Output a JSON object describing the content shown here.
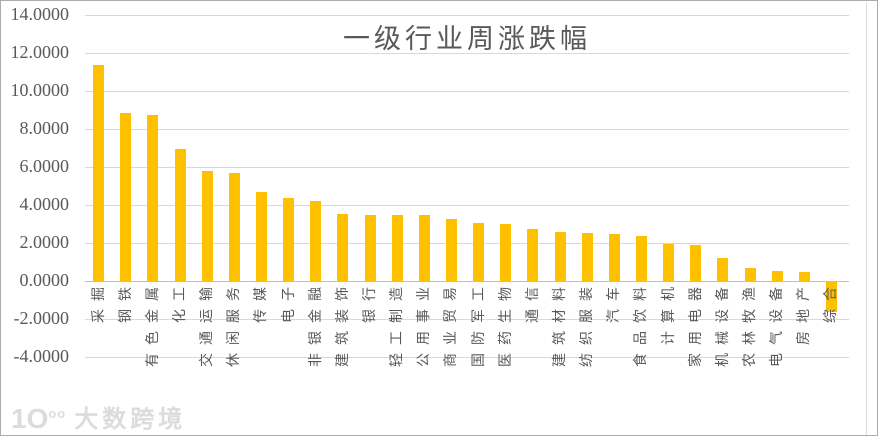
{
  "title": "一级行业周涨跌幅",
  "watermark": {
    "logo": "1O",
    "logo_sup": "oo",
    "brand": "大数跨境"
  },
  "chart_data": {
    "type": "bar",
    "title": "一级行业周涨跌幅",
    "categories": [
      "采掘",
      "钢铁",
      "有色金属",
      "化工",
      "交通运输",
      "休闲服务",
      "传媒",
      "电子",
      "非银金融",
      "建筑装饰",
      "银行",
      "轻工制造",
      "公用事业",
      "商业贸易",
      "国防军工",
      "医药生物",
      "通信",
      "建筑材料",
      "纺织服装",
      "汽车",
      "食品饮料",
      "计算机",
      "家用电器",
      "机械设备",
      "农林牧渔",
      "电气设备",
      "房地产",
      "综合"
    ],
    "values": [
      11.35,
      8.85,
      8.75,
      6.95,
      5.8,
      5.7,
      4.7,
      4.35,
      4.2,
      3.55,
      3.5,
      3.45,
      3.45,
      3.25,
      3.05,
      3.0,
      2.75,
      2.6,
      2.55,
      2.45,
      2.35,
      1.95,
      1.9,
      1.2,
      0.7,
      0.55,
      0.5,
      -1.65
    ],
    "xlabel": "",
    "ylabel": "",
    "ylim": [
      -4,
      14
    ],
    "ytick_step": 2,
    "ytick_labels": [
      "14.0000",
      "12.0000",
      "10.0000",
      "8.0000",
      "6.0000",
      "4.0000",
      "2.0000",
      "0.0000",
      "-2.0000",
      "-4.0000"
    ],
    "grid": true,
    "legend": "none",
    "bar_color": "#FFC000",
    "gridline_color": "#D9D9D9",
    "zero_axis_color": "#BFBFBF",
    "text_color": "#595959"
  }
}
